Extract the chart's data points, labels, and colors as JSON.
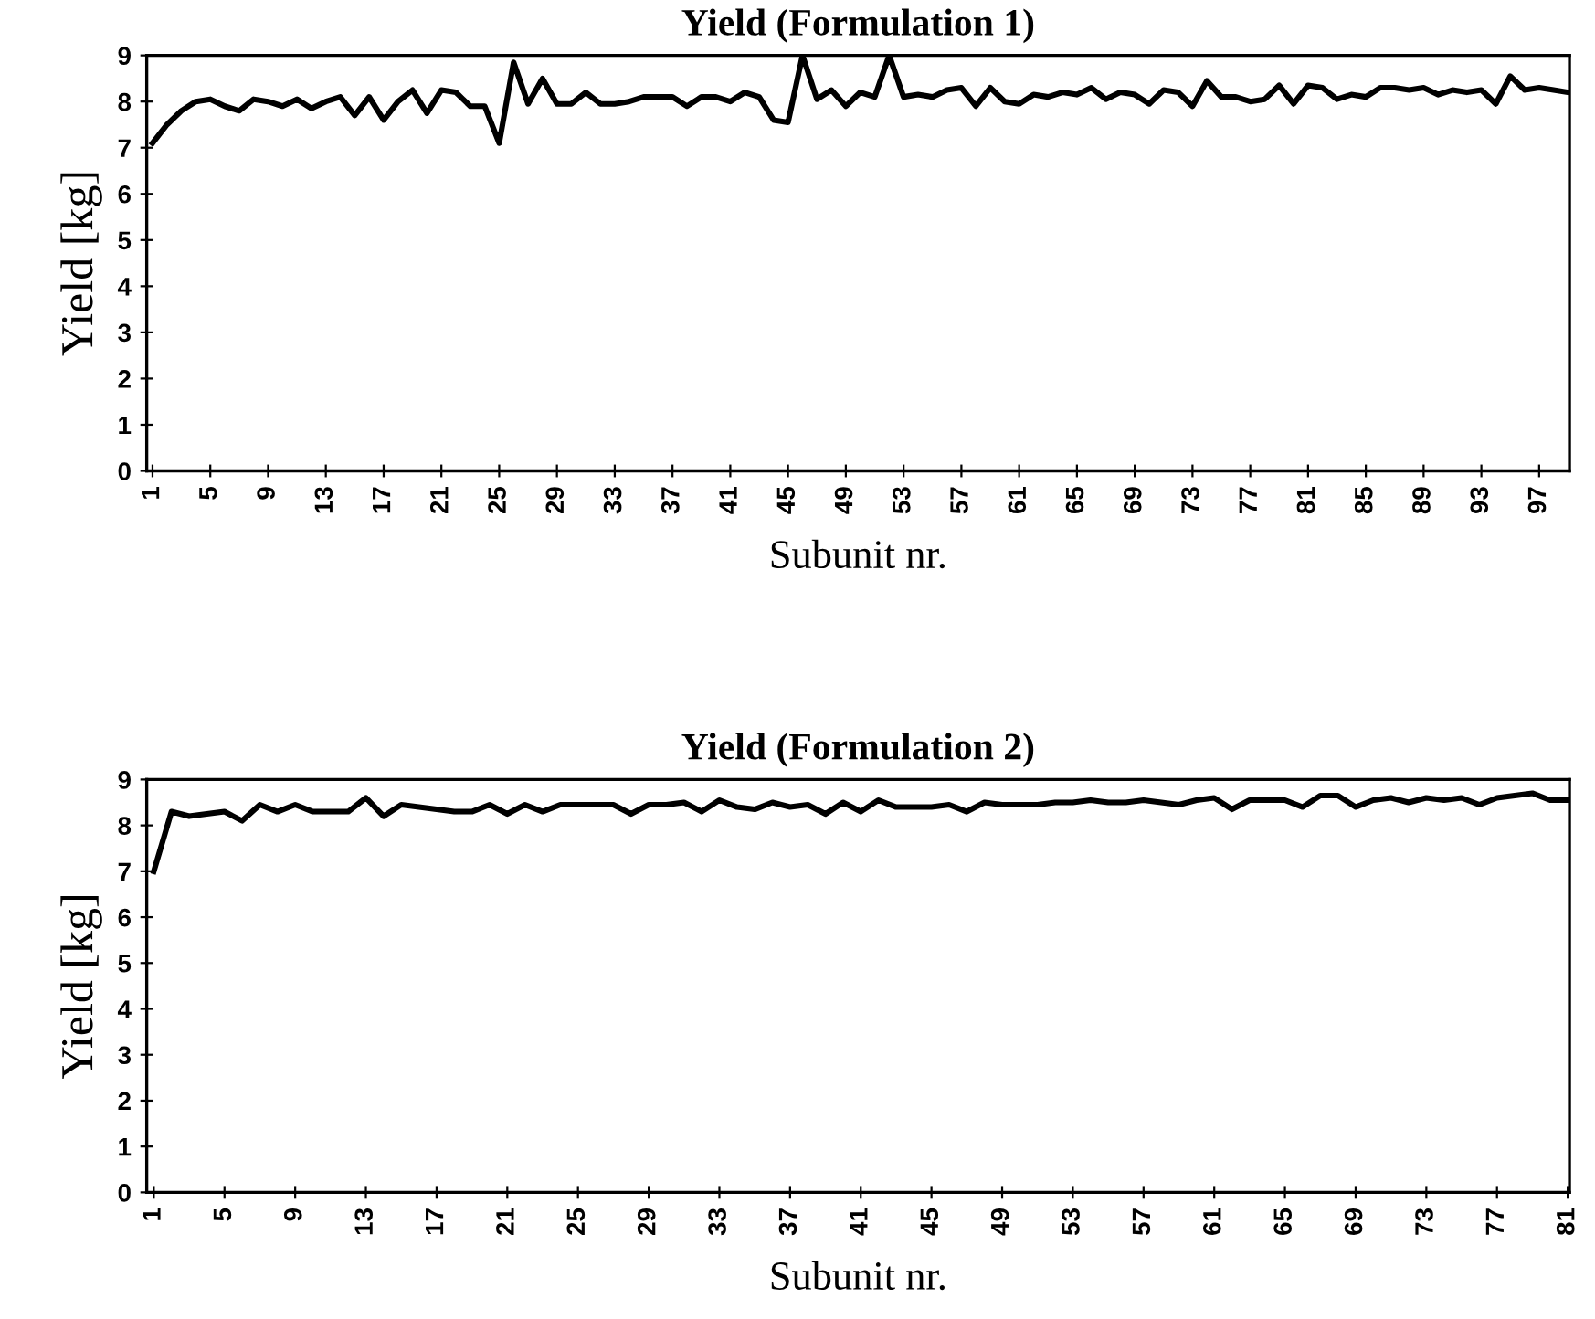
{
  "chart_data": [
    {
      "type": "line",
      "title": "Yield (Formulation 1)",
      "xlabel": "Subunit nr.",
      "ylabel": "Yield [kg]",
      "ylim": [
        0,
        9
      ],
      "yticks": [
        0,
        1,
        2,
        3,
        4,
        5,
        6,
        7,
        8,
        9
      ],
      "grid": false,
      "marker": "none",
      "line_style": "solid",
      "categories": [
        "1",
        null,
        null,
        null,
        "5",
        null,
        null,
        null,
        "9",
        null,
        null,
        null,
        "13",
        null,
        null,
        null,
        "17",
        null,
        null,
        null,
        "21",
        null,
        null,
        null,
        "25",
        null,
        null,
        null,
        "29",
        null,
        null,
        null,
        "33",
        null,
        null,
        null,
        "37",
        null,
        null,
        null,
        "41",
        null,
        null,
        null,
        "45",
        null,
        null,
        null,
        "49",
        null,
        null,
        null,
        "53",
        null,
        null,
        null,
        "57",
        null,
        null,
        null,
        "61",
        null,
        null,
        null,
        "65",
        null,
        null,
        null,
        "69",
        null,
        null,
        null,
        "73",
        null,
        null,
        null,
        "77",
        null,
        null,
        null,
        "81",
        null,
        null,
        null,
        "85",
        null,
        null,
        null,
        "89",
        null,
        null,
        null,
        "93",
        null,
        null,
        null,
        "97",
        null,
        null
      ],
      "series": [
        {
          "color": "#000000",
          "values": [
            7.1,
            7.5,
            7.8,
            8.0,
            8.05,
            7.9,
            7.8,
            8.05,
            8.0,
            7.9,
            8.05,
            7.85,
            8.0,
            8.1,
            7.7,
            8.1,
            7.6,
            8.0,
            8.25,
            7.75,
            8.25,
            8.2,
            7.9,
            7.9,
            7.1,
            8.85,
            7.95,
            8.5,
            7.95,
            7.95,
            8.2,
            7.95,
            7.95,
            8.0,
            8.1,
            8.1,
            8.1,
            7.9,
            8.1,
            8.1,
            8.0,
            8.2,
            8.1,
            7.6,
            7.55,
            9.0,
            8.05,
            8.25,
            7.9,
            8.2,
            8.1,
            9.0,
            8.1,
            8.15,
            8.1,
            8.25,
            8.3,
            7.9,
            8.3,
            8.0,
            7.95,
            8.15,
            8.1,
            8.2,
            8.15,
            8.3,
            8.05,
            8.2,
            8.15,
            7.95,
            8.25,
            8.2,
            7.9,
            8.45,
            8.1,
            8.1,
            8.0,
            8.05,
            8.35,
            7.95,
            8.35,
            8.3,
            8.05,
            8.15,
            8.1,
            8.3,
            8.3,
            8.25,
            8.3,
            8.15,
            8.25,
            8.2,
            8.25,
            7.95,
            8.55,
            8.25,
            8.3,
            8.25,
            8.2
          ]
        }
      ]
    },
    {
      "type": "line",
      "title": "Yield (Formulation 2)",
      "xlabel": "Subunit nr.",
      "ylabel": "Yield [kg]",
      "ylim": [
        0,
        9
      ],
      "yticks": [
        0,
        1,
        2,
        3,
        4,
        5,
        6,
        7,
        8,
        9
      ],
      "grid": false,
      "marker": "none",
      "line_style": "solid",
      "categories": [
        "1",
        null,
        null,
        null,
        "5",
        null,
        null,
        null,
        "9",
        null,
        null,
        null,
        "13",
        null,
        null,
        null,
        "17",
        null,
        null,
        null,
        "21",
        null,
        null,
        null,
        "25",
        null,
        null,
        null,
        "29",
        null,
        null,
        null,
        "33",
        null,
        null,
        null,
        "37",
        null,
        null,
        null,
        "41",
        null,
        null,
        null,
        "45",
        null,
        null,
        null,
        "49",
        null,
        null,
        null,
        "53",
        null,
        null,
        null,
        "57",
        null,
        null,
        null,
        "61",
        null,
        null,
        null,
        "65",
        null,
        null,
        null,
        "69",
        null,
        null,
        null,
        "73",
        null,
        null,
        null,
        "77",
        null,
        null,
        null,
        "81"
      ],
      "series": [
        {
          "color": "#000000",
          "values": [
            7.0,
            8.3,
            8.2,
            8.25,
            8.3,
            8.1,
            8.45,
            8.3,
            8.45,
            8.3,
            8.3,
            8.3,
            8.6,
            8.2,
            8.45,
            8.4,
            8.35,
            8.3,
            8.3,
            8.45,
            8.25,
            8.45,
            8.3,
            8.45,
            8.45,
            8.45,
            8.45,
            8.25,
            8.45,
            8.45,
            8.5,
            8.3,
            8.55,
            8.4,
            8.35,
            8.5,
            8.4,
            8.45,
            8.25,
            8.5,
            8.3,
            8.55,
            8.4,
            8.4,
            8.4,
            8.45,
            8.3,
            8.5,
            8.45,
            8.45,
            8.45,
            8.5,
            8.5,
            8.55,
            8.5,
            8.5,
            8.55,
            8.5,
            8.45,
            8.55,
            8.6,
            8.35,
            8.55,
            8.55,
            8.55,
            8.4,
            8.65,
            8.65,
            8.4,
            8.55,
            8.6,
            8.5,
            8.6,
            8.55,
            8.6,
            8.45,
            8.6,
            8.65,
            8.7,
            8.55,
            8.55
          ]
        }
      ]
    }
  ]
}
